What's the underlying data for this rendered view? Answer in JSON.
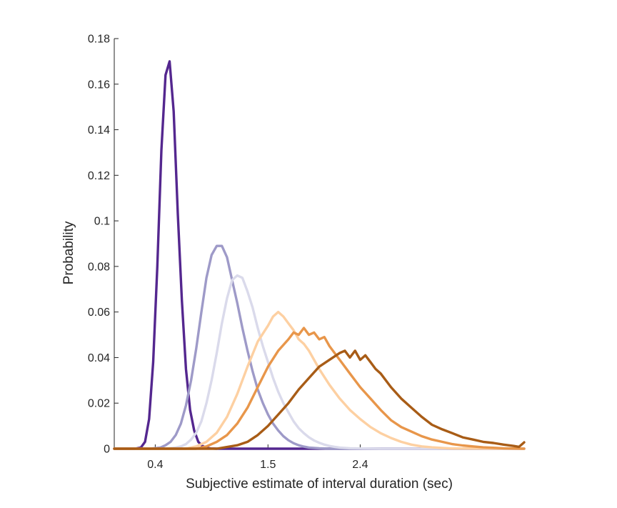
{
  "chart_data": {
    "type": "line",
    "title": "",
    "xlabel": "Subjective estimate of interval duration (sec)",
    "ylabel": "Probability",
    "xlim": [
      0,
      4.0
    ],
    "ylim": [
      0,
      0.18
    ],
    "xticks": [
      0.4,
      1.5,
      2.4
    ],
    "xtick_labels": [
      "0.4",
      "1.5",
      "2.4"
    ],
    "yticks": [
      0,
      0.02,
      0.04,
      0.06,
      0.08,
      0.1,
      0.12,
      0.14,
      0.16,
      0.18
    ],
    "ytick_labels": [
      "0",
      "0.02",
      "0.04",
      "0.06",
      "0.08",
      "0.1",
      "0.12",
      "0.14",
      "0.16",
      "0.18"
    ],
    "grid": false,
    "series": [
      {
        "color": "#54278f",
        "x": [
          0,
          0.2,
          0.26,
          0.3,
          0.34,
          0.38,
          0.42,
          0.46,
          0.5,
          0.54,
          0.58,
          0.62,
          0.66,
          0.7,
          0.74,
          0.78,
          0.82,
          0.86,
          0.9,
          0.94,
          1.0,
          1.1,
          1.3,
          1.6,
          4.0
        ],
        "y": [
          0,
          0,
          0.0005,
          0.003,
          0.013,
          0.038,
          0.08,
          0.131,
          0.164,
          0.17,
          0.148,
          0.103,
          0.065,
          0.035,
          0.017,
          0.008,
          0.003,
          0.0012,
          0.0004,
          0.0001,
          0,
          0,
          0,
          0,
          0
        ]
      },
      {
        "color": "#9e9ac8",
        "x": [
          0,
          0.35,
          0.45,
          0.5,
          0.55,
          0.6,
          0.65,
          0.7,
          0.75,
          0.8,
          0.85,
          0.9,
          0.95,
          1.0,
          1.05,
          1.1,
          1.15,
          1.2,
          1.25,
          1.3,
          1.35,
          1.4,
          1.45,
          1.5,
          1.55,
          1.6,
          1.65,
          1.7,
          1.75,
          1.8,
          1.85,
          1.9,
          2.0,
          2.1,
          2.3,
          4.0
        ],
        "y": [
          0,
          0,
          0.0005,
          0.0015,
          0.003,
          0.006,
          0.011,
          0.019,
          0.03,
          0.044,
          0.06,
          0.075,
          0.085,
          0.089,
          0.089,
          0.084,
          0.074,
          0.064,
          0.053,
          0.043,
          0.034,
          0.026,
          0.02,
          0.015,
          0.011,
          0.008,
          0.0055,
          0.0037,
          0.0024,
          0.0015,
          0.0009,
          0.0005,
          0.0002,
          0,
          0,
          0
        ]
      },
      {
        "color": "#dadaeb",
        "x": [
          0,
          0.5,
          0.6,
          0.65,
          0.7,
          0.75,
          0.8,
          0.85,
          0.9,
          0.95,
          1.0,
          1.05,
          1.1,
          1.15,
          1.2,
          1.25,
          1.3,
          1.35,
          1.4,
          1.45,
          1.5,
          1.55,
          1.6,
          1.65,
          1.7,
          1.75,
          1.8,
          1.85,
          1.9,
          1.95,
          2.0,
          2.05,
          2.1,
          2.15,
          2.2,
          2.3,
          2.4,
          2.6,
          4.0
        ],
        "y": [
          0,
          0,
          0.0005,
          0.001,
          0.002,
          0.004,
          0.007,
          0.012,
          0.02,
          0.03,
          0.042,
          0.055,
          0.066,
          0.074,
          0.076,
          0.075,
          0.069,
          0.062,
          0.053,
          0.045,
          0.038,
          0.031,
          0.025,
          0.02,
          0.016,
          0.012,
          0.009,
          0.0068,
          0.005,
          0.0036,
          0.0026,
          0.0018,
          0.0012,
          0.0008,
          0.0005,
          0.0002,
          0.0001,
          0,
          0
        ]
      },
      {
        "color": "#fdd0a2",
        "x": [
          0,
          0.7,
          0.8,
          0.9,
          1.0,
          1.1,
          1.2,
          1.3,
          1.4,
          1.5,
          1.55,
          1.6,
          1.65,
          1.7,
          1.75,
          1.8,
          1.85,
          1.9,
          1.95,
          2.0,
          2.1,
          2.2,
          2.3,
          2.4,
          2.5,
          2.6,
          2.7,
          2.8,
          2.9,
          3.0,
          3.1,
          3.2,
          3.3,
          4.0
        ],
        "y": [
          0,
          0,
          0.001,
          0.003,
          0.007,
          0.014,
          0.024,
          0.036,
          0.047,
          0.054,
          0.058,
          0.06,
          0.058,
          0.055,
          0.052,
          0.048,
          0.046,
          0.043,
          0.039,
          0.035,
          0.028,
          0.022,
          0.017,
          0.013,
          0.0095,
          0.0068,
          0.0047,
          0.003,
          0.0018,
          0.001,
          0.0006,
          0.0003,
          0.0001,
          0
        ]
      },
      {
        "color": "#e8964a",
        "x": [
          0,
          0.8,
          0.9,
          1.0,
          1.1,
          1.2,
          1.3,
          1.4,
          1.5,
          1.6,
          1.7,
          1.75,
          1.8,
          1.85,
          1.9,
          1.95,
          2.0,
          2.05,
          2.1,
          2.2,
          2.3,
          2.4,
          2.5,
          2.6,
          2.7,
          2.8,
          2.9,
          3.0,
          3.1,
          3.2,
          3.3,
          3.4,
          3.5,
          3.6,
          3.7,
          3.8,
          4.0
        ],
        "y": [
          0,
          0,
          0.001,
          0.003,
          0.006,
          0.011,
          0.018,
          0.027,
          0.036,
          0.043,
          0.048,
          0.051,
          0.05,
          0.053,
          0.05,
          0.051,
          0.048,
          0.049,
          0.045,
          0.039,
          0.033,
          0.027,
          0.022,
          0.017,
          0.0125,
          0.0095,
          0.0075,
          0.0055,
          0.004,
          0.003,
          0.002,
          0.0014,
          0.001,
          0.0006,
          0.0004,
          0.0002,
          0
        ]
      },
      {
        "color": "#a85c16",
        "x": [
          0,
          1.0,
          1.2,
          1.3,
          1.4,
          1.5,
          1.6,
          1.7,
          1.8,
          1.9,
          2.0,
          2.1,
          2.2,
          2.25,
          2.3,
          2.35,
          2.4,
          2.45,
          2.5,
          2.55,
          2.6,
          2.7,
          2.8,
          2.9,
          3.0,
          3.1,
          3.2,
          3.3,
          3.4,
          3.5,
          3.6,
          3.7,
          3.8,
          3.9,
          3.95,
          4.0
        ],
        "y": [
          0,
          0,
          0.0015,
          0.003,
          0.006,
          0.01,
          0.015,
          0.02,
          0.026,
          0.031,
          0.036,
          0.039,
          0.042,
          0.043,
          0.04,
          0.043,
          0.039,
          0.041,
          0.038,
          0.035,
          0.033,
          0.027,
          0.022,
          0.018,
          0.014,
          0.0105,
          0.0085,
          0.0068,
          0.005,
          0.004,
          0.003,
          0.0025,
          0.0018,
          0.0012,
          0.0008,
          0.0028
        ]
      }
    ]
  }
}
